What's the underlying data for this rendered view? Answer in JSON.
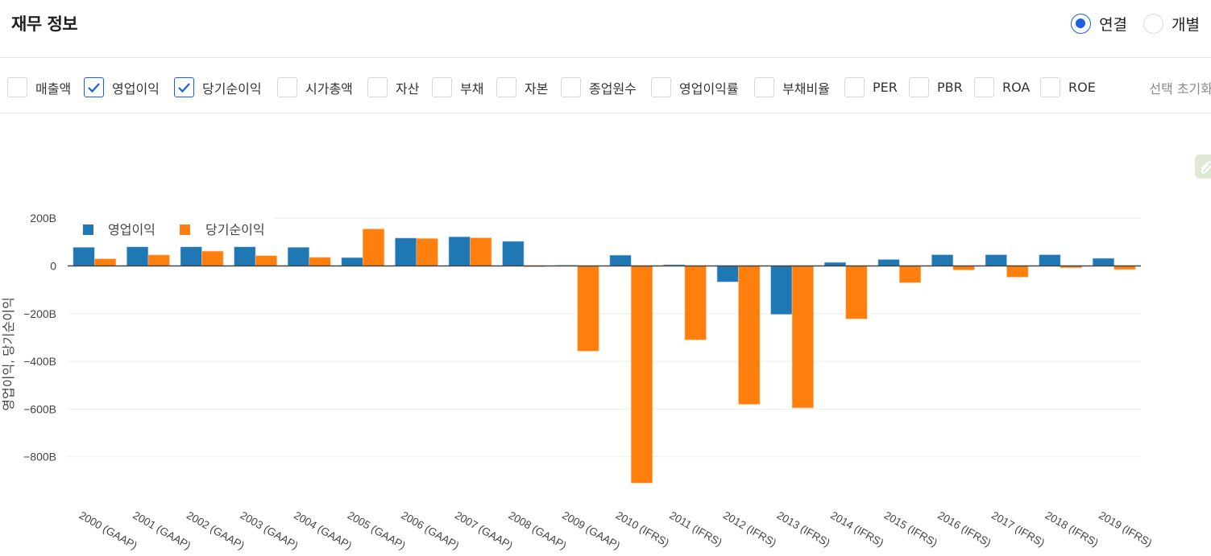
{
  "header": {
    "title": "재무 정보",
    "statement_type": {
      "options": [
        {
          "label": "연결",
          "selected": true
        },
        {
          "label": "개별",
          "selected": false
        }
      ]
    }
  },
  "filters": {
    "items": [
      {
        "label": "매출액",
        "checked": false
      },
      {
        "label": "영업이익",
        "checked": true
      },
      {
        "label": "당기순이익",
        "checked": true
      },
      {
        "label": "시가총액",
        "checked": false
      },
      {
        "label": "자산",
        "checked": false
      },
      {
        "label": "부채",
        "checked": false
      },
      {
        "label": "자본",
        "checked": false
      },
      {
        "label": "종업원수",
        "checked": false
      },
      {
        "label": "영업이익률",
        "checked": false
      },
      {
        "label": "부채비율",
        "checked": false
      },
      {
        "label": "PER",
        "checked": false
      },
      {
        "label": "PBR",
        "checked": false
      },
      {
        "label": "ROA",
        "checked": false
      },
      {
        "label": "ROE",
        "checked": false
      }
    ],
    "reset_label": "선택 초기화"
  },
  "icons": {
    "attachment": "paperclip-icon"
  },
  "colors": {
    "accent": "#1a5fe6",
    "series_operating": "#1f77b4",
    "series_net": "#ff7f0e",
    "grid": "#eeeeee",
    "zero_line": "#444444"
  },
  "chart_data": {
    "type": "bar",
    "title": "",
    "xlabel": "",
    "ylabel": "영업이익, 당기순이익",
    "ylim": [
      -900,
      200
    ],
    "yticks": [
      200,
      0,
      -200,
      -400,
      -600,
      -800
    ],
    "ytick_labels": [
      "200B",
      "0",
      "−200B",
      "−400B",
      "−600B",
      "−800B"
    ],
    "unit": "B",
    "grid": true,
    "legend_position": "top-left",
    "categories": [
      "2000 (GAAP)",
      "2001 (GAAP)",
      "2002 (GAAP)",
      "2003 (GAAP)",
      "2004 (GAAP)",
      "2005 (GAAP)",
      "2006 (GAAP)",
      "2007 (GAAP)",
      "2008 (GAAP)",
      "2009 (GAAP)",
      "2010 (IFRS)",
      "2011 (IFRS)",
      "2012 (IFRS)",
      "2013 (IFRS)",
      "2014 (IFRS)",
      "2015 (IFRS)",
      "2016 (IFRS)",
      "2017 (IFRS)",
      "2018 (IFRS)",
      "2019 (IFRS)"
    ],
    "series": [
      {
        "name": "영업이익",
        "color": "#1f77b4",
        "values": [
          78,
          80,
          80,
          80,
          78,
          35,
          117,
          122,
          103,
          3,
          45,
          5,
          -67,
          -203,
          15,
          27,
          47,
          47,
          47,
          32
        ]
      },
      {
        "name": "당기순이익",
        "color": "#ff7f0e",
        "values": [
          30,
          46,
          62,
          43,
          36,
          155,
          115,
          118,
          -2,
          -357,
          -910,
          -310,
          -580,
          -595,
          -222,
          -70,
          -17,
          -47,
          -8,
          -15
        ]
      }
    ]
  }
}
